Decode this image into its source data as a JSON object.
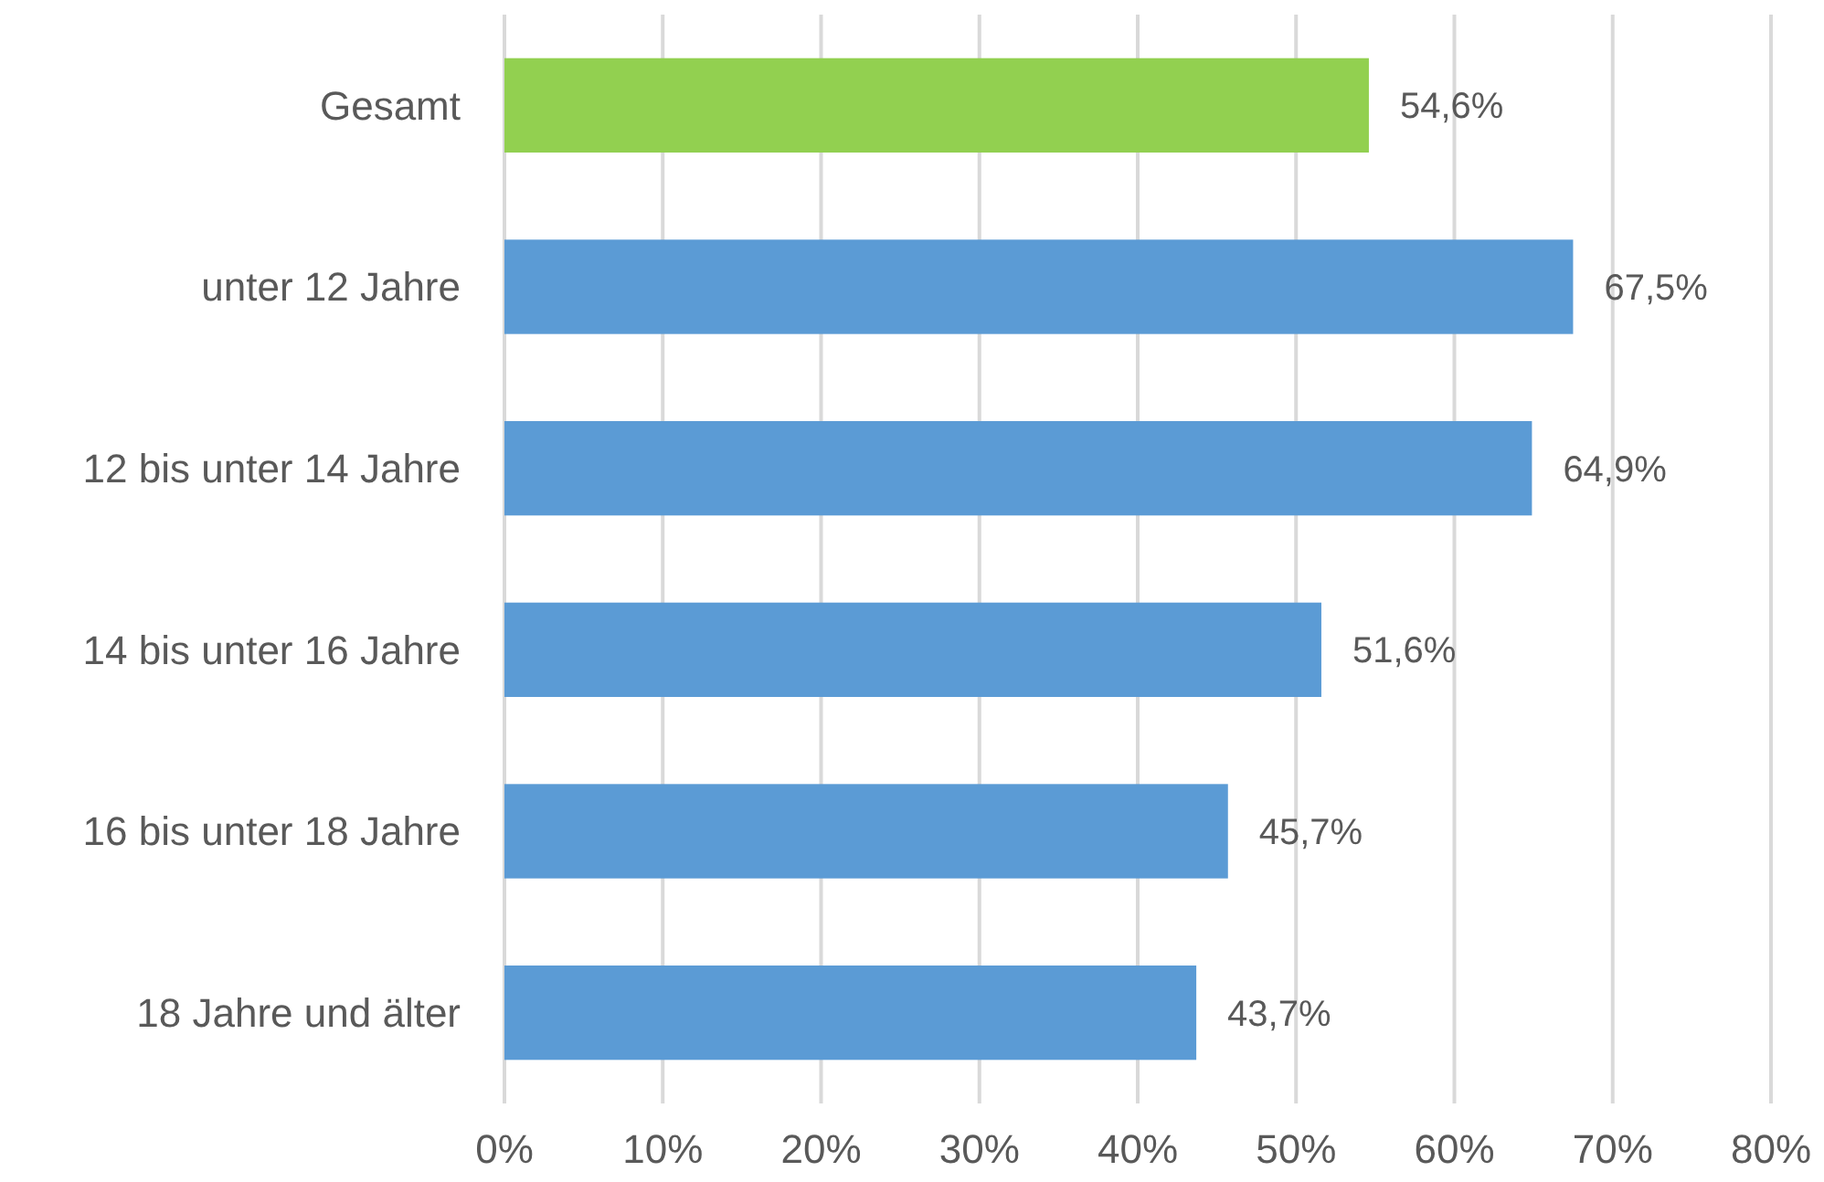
{
  "chart_data": {
    "type": "bar",
    "orientation": "horizontal",
    "categories": [
      "Gesamt",
      "unter 12 Jahre",
      "12 bis unter 14 Jahre",
      "14 bis unter 16 Jahre",
      "16 bis unter 18 Jahre",
      "18 Jahre und älter"
    ],
    "values": [
      54.6,
      67.5,
      64.9,
      51.6,
      45.7,
      43.7
    ],
    "colors": [
      "#92d050",
      "#5b9bd5",
      "#5b9bd5",
      "#5b9bd5",
      "#5b9bd5",
      "#5b9bd5"
    ],
    "value_labels": [
      "54,6%",
      "67,5%",
      "64,9%",
      "51,6%",
      "45,7%",
      "43,7%"
    ],
    "xlim": [
      0,
      80
    ],
    "xticks": [
      {
        "value": 0,
        "label": "0%"
      },
      {
        "value": 10,
        "label": "10%"
      },
      {
        "value": 20,
        "label": "20%"
      },
      {
        "value": 30,
        "label": "30%"
      },
      {
        "value": 40,
        "label": "40%"
      },
      {
        "value": 50,
        "label": "50%"
      },
      {
        "value": 60,
        "label": "60%"
      },
      {
        "value": 70,
        "label": "70%"
      },
      {
        "value": 80,
        "label": "80%"
      }
    ],
    "grid": "x"
  }
}
